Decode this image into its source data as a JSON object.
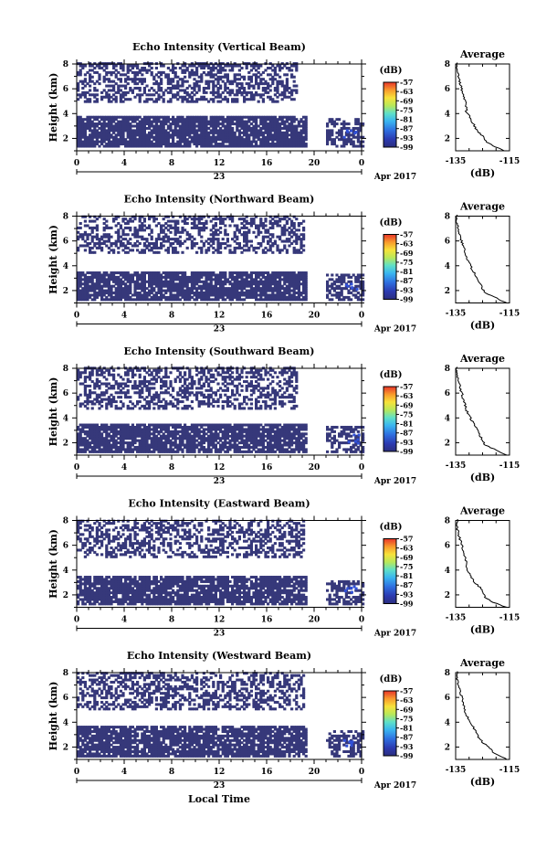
{
  "figure": {
    "month_label": "Apr 2017",
    "x_axis_title": "Local Time"
  },
  "chart_data": [
    {
      "type": "heatmap",
      "title": "Echo Intensity (Vertical Beam)",
      "ylabel": "Height (km)",
      "xlim": [
        0,
        24
      ],
      "ylim": [
        1,
        8
      ],
      "x_ticks": [
        "0",
        "4",
        "8",
        "12",
        "16",
        "20",
        "0"
      ],
      "y_ticks": [
        "2",
        "4",
        "6",
        "8"
      ],
      "date_label": "23",
      "colorbar": {
        "unit": "(dB)",
        "ticks": [
          "-57",
          "-63",
          "-69",
          "-75",
          "-81",
          "-87",
          "-93",
          "-99"
        ],
        "range": [
          -99,
          -57
        ]
      },
      "high_band_time": [
        0,
        18.5
      ],
      "high_band_height": [
        4.9,
        8
      ],
      "low_band_time": [
        0,
        24
      ],
      "low_band_height": [
        1.3,
        3.8
      ],
      "profile": {
        "title": "Average",
        "xlabel": "(dB)",
        "xlim": [
          -135,
          -115
        ],
        "x_ticks": [
          "-135",
          "-115"
        ],
        "y_ticks": [
          "2",
          "4",
          "6",
          "8"
        ],
        "heights": [
          1.0,
          1.4,
          1.8,
          2.2,
          2.6,
          3.0,
          3.4,
          3.8,
          4.2,
          4.6,
          5.0,
          5.4,
          5.8,
          6.2,
          6.6,
          7.0,
          7.4,
          7.8
        ],
        "values": [
          -117,
          -121,
          -124,
          -125,
          -127,
          -128,
          -129,
          -130,
          -131,
          -131,
          -131.5,
          -132,
          -132.5,
          -133,
          -133.5,
          -134,
          -134.5,
          -134.5
        ]
      }
    },
    {
      "type": "heatmap",
      "title": "Echo Intensity (Northward Beam)",
      "ylabel": "Height (km)",
      "xlim": [
        0,
        24
      ],
      "ylim": [
        1,
        8
      ],
      "x_ticks": [
        "0",
        "4",
        "8",
        "12",
        "16",
        "20",
        "0"
      ],
      "y_ticks": [
        "2",
        "4",
        "6",
        "8"
      ],
      "date_label": "23",
      "colorbar": {
        "unit": "(dB)",
        "ticks": [
          "-57",
          "-63",
          "-69",
          "-75",
          "-81",
          "-87",
          "-93",
          "-99"
        ],
        "range": [
          -99,
          -57
        ]
      },
      "high_band_time": [
        0,
        19
      ],
      "high_band_height": [
        5,
        8
      ],
      "low_band_time": [
        0,
        24
      ],
      "low_band_height": [
        1.2,
        3.5
      ],
      "profile": {
        "title": "Average",
        "xlabel": "(dB)",
        "xlim": [
          -135,
          -115
        ],
        "x_ticks": [
          "-135",
          "-115"
        ],
        "y_ticks": [
          "2",
          "4",
          "6",
          "8"
        ],
        "heights": [
          1.0,
          1.4,
          1.8,
          2.2,
          2.6,
          3.0,
          3.4,
          3.8,
          4.2,
          4.6,
          5.0,
          5.4,
          5.8,
          6.2,
          6.6,
          7.0,
          7.4,
          7.8
        ],
        "values": [
          -116,
          -120,
          -124,
          -125,
          -126,
          -127,
          -128,
          -129,
          -130,
          -131,
          -131.5,
          -132,
          -132.5,
          -133,
          -133.5,
          -134,
          -134.5,
          -134.5
        ]
      }
    },
    {
      "type": "heatmap",
      "title": "Echo Intensity (Southward Beam)",
      "ylabel": "Height (km)",
      "xlim": [
        0,
        24
      ],
      "ylim": [
        1,
        8
      ],
      "x_ticks": [
        "0",
        "4",
        "8",
        "12",
        "16",
        "20",
        "0"
      ],
      "y_ticks": [
        "2",
        "4",
        "6",
        "8"
      ],
      "date_label": "23",
      "colorbar": {
        "unit": "(dB)",
        "ticks": [
          "-57",
          "-63",
          "-69",
          "-75",
          "-81",
          "-87",
          "-93",
          "-99"
        ],
        "range": [
          -99,
          -57
        ]
      },
      "high_band_time": [
        0,
        18.5
      ],
      "high_band_height": [
        4.7,
        8
      ],
      "low_band_time": [
        0,
        24
      ],
      "low_band_height": [
        1.2,
        3.5
      ],
      "profile": {
        "title": "Average",
        "xlabel": "(dB)",
        "xlim": [
          -135,
          -115
        ],
        "x_ticks": [
          "-135",
          "-115"
        ],
        "y_ticks": [
          "2",
          "4",
          "6",
          "8"
        ],
        "heights": [
          1.0,
          1.4,
          1.8,
          2.2,
          2.6,
          3.0,
          3.4,
          3.8,
          4.2,
          4.6,
          5.0,
          5.4,
          5.8,
          6.2,
          6.6,
          7.0,
          7.4,
          7.8
        ],
        "values": [
          -116,
          -120,
          -124,
          -125,
          -126,
          -127,
          -128,
          -129,
          -130,
          -131,
          -131.5,
          -132,
          -132.5,
          -133,
          -133.5,
          -134,
          -134.5,
          -134.5
        ]
      }
    },
    {
      "type": "heatmap",
      "title": "Echo Intensity (Eastward Beam)",
      "ylabel": "Height (km)",
      "xlim": [
        0,
        24
      ],
      "ylim": [
        1,
        8
      ],
      "x_ticks": [
        "0",
        "4",
        "8",
        "12",
        "16",
        "20",
        "0"
      ],
      "y_ticks": [
        "2",
        "4",
        "6",
        "8"
      ],
      "date_label": "23",
      "colorbar": {
        "unit": "(dB)",
        "ticks": [
          "-57",
          "-63",
          "-69",
          "-75",
          "-81",
          "-87",
          "-93",
          "-99"
        ],
        "range": [
          -99,
          -57
        ]
      },
      "high_band_time": [
        0,
        19
      ],
      "high_band_height": [
        5,
        8
      ],
      "low_band_time": [
        0,
        24
      ],
      "low_band_height": [
        1.2,
        3.4
      ],
      "profile": {
        "title": "Average",
        "xlabel": "(dB)",
        "xlim": [
          -135,
          -115
        ],
        "x_ticks": [
          "-135",
          "-115"
        ],
        "y_ticks": [
          "2",
          "4",
          "6",
          "8"
        ],
        "heights": [
          1.0,
          1.4,
          1.8,
          2.2,
          2.6,
          3.0,
          3.4,
          3.8,
          4.2,
          4.6,
          5.0,
          5.4,
          5.8,
          6.2,
          6.6,
          7.0,
          7.4,
          7.8
        ],
        "values": [
          -116,
          -121,
          -124,
          -125,
          -126,
          -128,
          -129,
          -130,
          -131,
          -131,
          -131.5,
          -132,
          -132.5,
          -133,
          -133.5,
          -134,
          -134.5,
          -134.5
        ]
      }
    },
    {
      "type": "heatmap",
      "title": "Echo Intensity (Westward Beam)",
      "ylabel": "Height (km)",
      "xlim": [
        0,
        24
      ],
      "ylim": [
        1,
        8
      ],
      "x_ticks": [
        "0",
        "4",
        "8",
        "12",
        "16",
        "20",
        "0"
      ],
      "y_ticks": [
        "2",
        "4",
        "6",
        "8"
      ],
      "date_label": "23",
      "colorbar": {
        "unit": "(dB)",
        "ticks": [
          "-57",
          "-63",
          "-69",
          "-75",
          "-81",
          "-87",
          "-93",
          "-99"
        ],
        "range": [
          -99,
          -57
        ]
      },
      "high_band_time": [
        0,
        19
      ],
      "high_band_height": [
        5,
        8
      ],
      "low_band_time": [
        0,
        24
      ],
      "low_band_height": [
        1.2,
        3.6
      ],
      "profile": {
        "title": "Average",
        "xlabel": "(dB)",
        "xlim": [
          -135,
          -115
        ],
        "x_ticks": [
          "-135",
          "-115"
        ],
        "y_ticks": [
          "2",
          "4",
          "6",
          "8"
        ],
        "heights": [
          1.0,
          1.4,
          1.8,
          2.2,
          2.6,
          3.0,
          3.4,
          3.8,
          4.2,
          4.6,
          5.0,
          5.4,
          5.8,
          6.2,
          6.6,
          7.0,
          7.4,
          7.8
        ],
        "values": [
          -116,
          -120,
          -122,
          -124,
          -126,
          -127,
          -128,
          -129,
          -130,
          -131,
          -131.5,
          -132,
          -132.5,
          -133,
          -133.5,
          -134,
          -134.5,
          -134.5
        ]
      }
    }
  ]
}
